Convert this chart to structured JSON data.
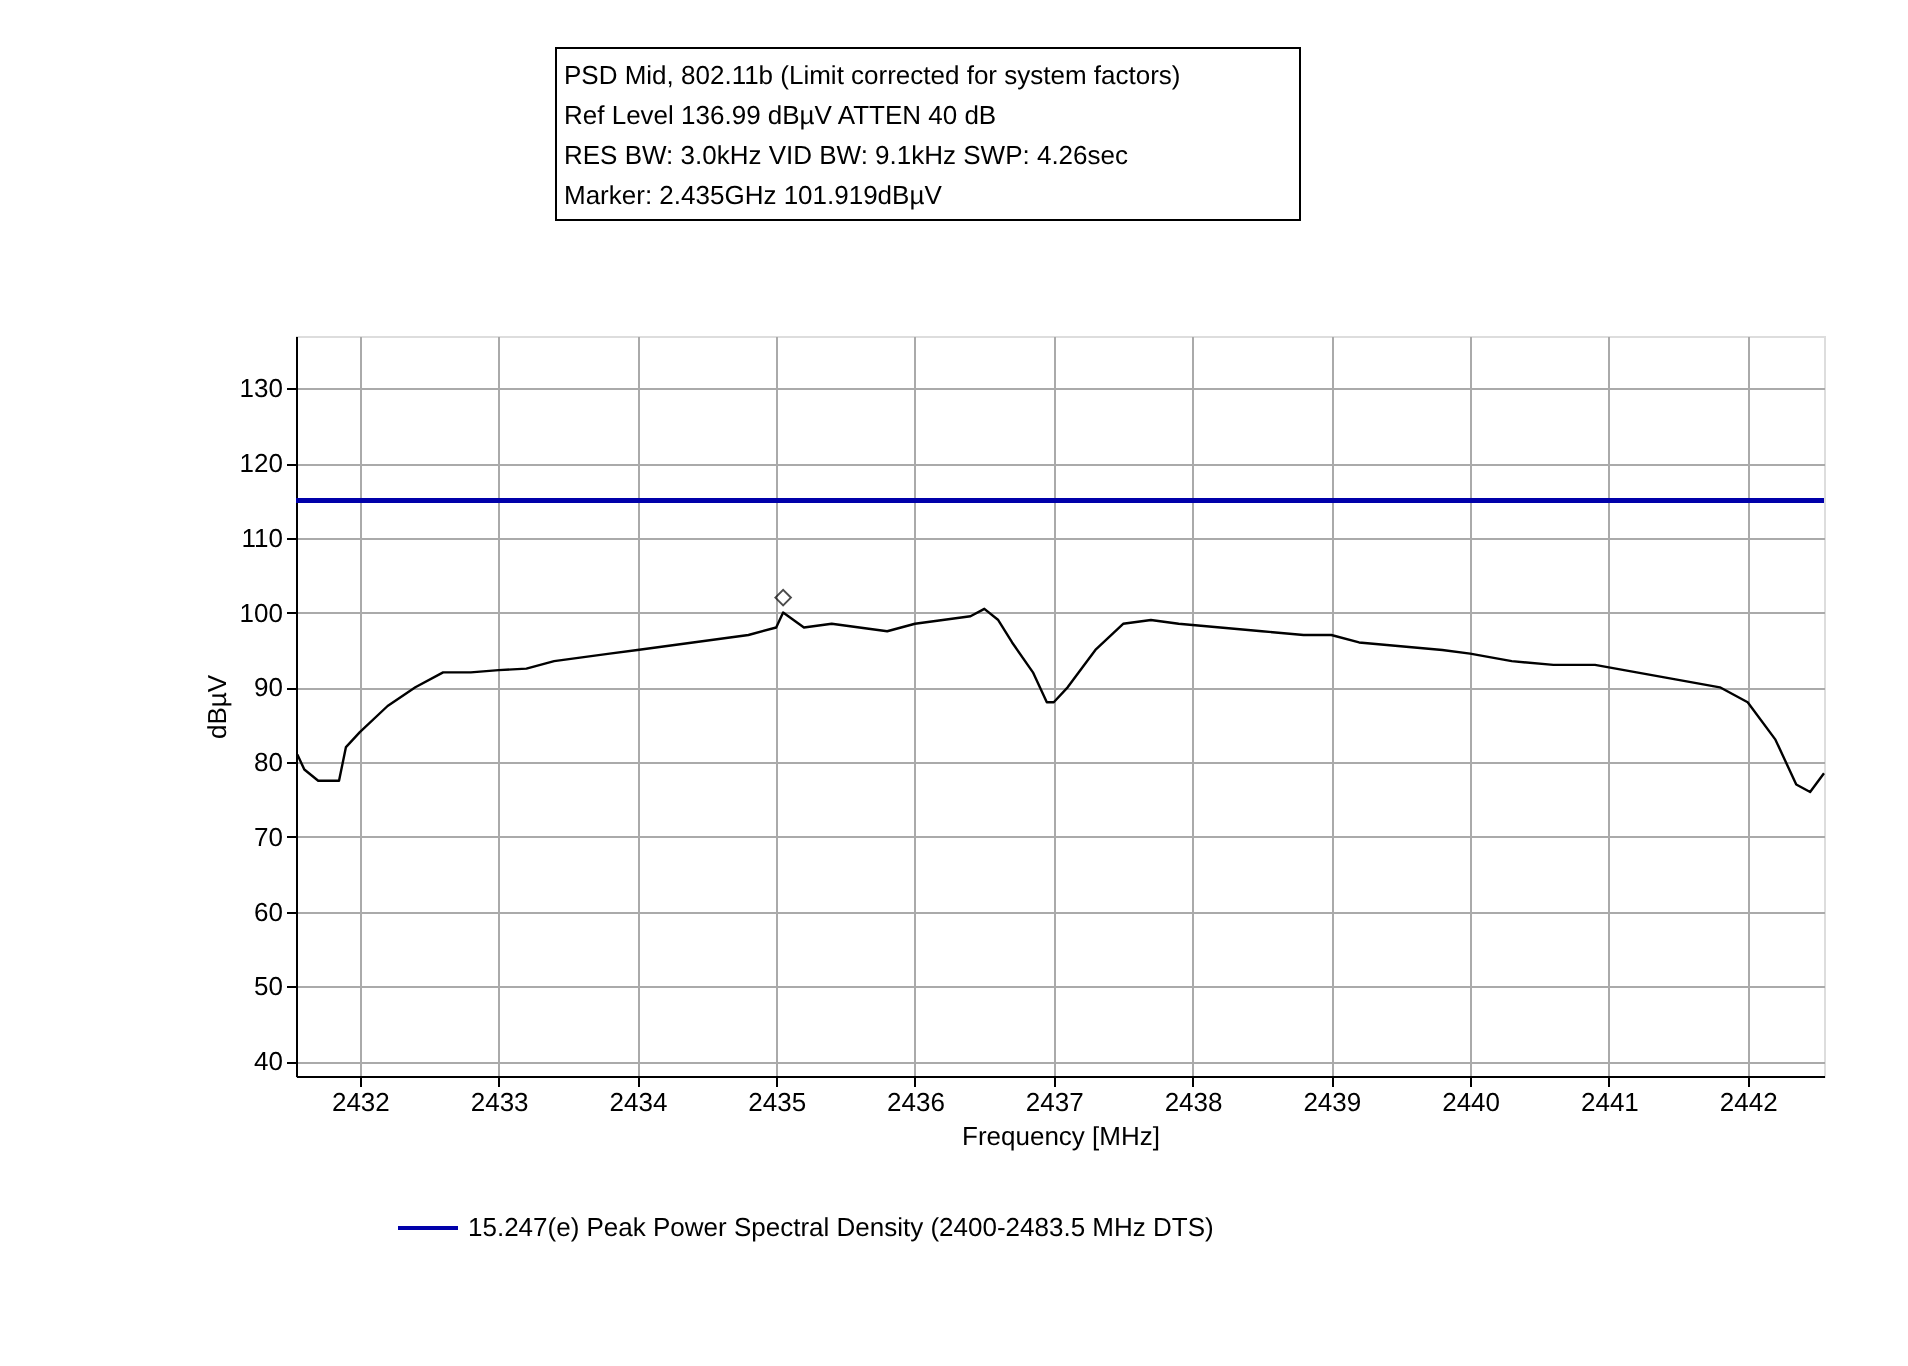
{
  "chart_data": {
    "type": "line",
    "xlabel": "Frequency [MHz]",
    "ylabel": "dBµV",
    "xlim": [
      2431.54,
      2442.55
    ],
    "xticks": [
      2432,
      2433,
      2434,
      2435,
      2436,
      2437,
      2438,
      2439,
      2440,
      2441,
      2442
    ],
    "ylim": [
      38,
      137
    ],
    "yticks": [
      40,
      50,
      60,
      70,
      80,
      90,
      100,
      110,
      120,
      130
    ],
    "grid": true,
    "legend": "bottom",
    "annotations": [
      "PSD Mid, 802.11b (Limit corrected for system factors)",
      "Ref Level 136.99 dBµV    ATTEN 40 dB",
      "RES BW: 3.0kHz  VID BW: 9.1kHz  SWP: 4.26sec",
      "Marker: 2.435GHz  101.919dBµV"
    ],
    "ref_lines": [
      {
        "axis": "y",
        "value": 115,
        "label": "15.247(e) Peak Power Spectral Density (2400-2483.5 MHz DTS)",
        "color": "#0000aa"
      }
    ],
    "series": [
      {
        "color": "#000000",
        "marker": "none",
        "line_style": "solid",
        "x": [
          2431.55,
          2431.6,
          2431.7,
          2431.85,
          2431.9,
          2432.0,
          2432.2,
          2432.4,
          2432.6,
          2432.8,
          2433.0,
          2433.2,
          2433.4,
          2433.6,
          2433.8,
          2434.0,
          2434.2,
          2434.4,
          2434.6,
          2434.8,
          2435.0,
          2435.05,
          2435.2,
          2435.4,
          2435.6,
          2435.8,
          2436.0,
          2436.2,
          2436.4,
          2436.5,
          2436.6,
          2436.7,
          2436.85,
          2436.95,
          2437.0,
          2437.1,
          2437.3,
          2437.5,
          2437.7,
          2437.9,
          2438.2,
          2438.5,
          2438.8,
          2439.0,
          2439.2,
          2439.5,
          2439.8,
          2440.0,
          2440.3,
          2440.6,
          2440.9,
          2441.2,
          2441.5,
          2441.8,
          2442.0,
          2442.2,
          2442.35,
          2442.45,
          2442.55
        ],
        "values": [
          81,
          79,
          77.5,
          77.5,
          82,
          84,
          87.5,
          90,
          92,
          92,
          92.3,
          92.5,
          93.5,
          94,
          94.5,
          95,
          95.5,
          96,
          96.5,
          97,
          98,
          100,
          98,
          98.5,
          98,
          97.5,
          98.5,
          99,
          99.5,
          100.5,
          99,
          96,
          92,
          88,
          88,
          90,
          95,
          98.5,
          99,
          98.5,
          98,
          97.5,
          97,
          97,
          96,
          95.5,
          95,
          94.5,
          93.5,
          93,
          93,
          92,
          91,
          90,
          88,
          83,
          77,
          76,
          78.5
        ]
      },
      {
        "type": "scatter",
        "color": "#000000",
        "marker": "diamond",
        "x": [
          2435.05
        ],
        "values": [
          102
        ]
      }
    ]
  }
}
